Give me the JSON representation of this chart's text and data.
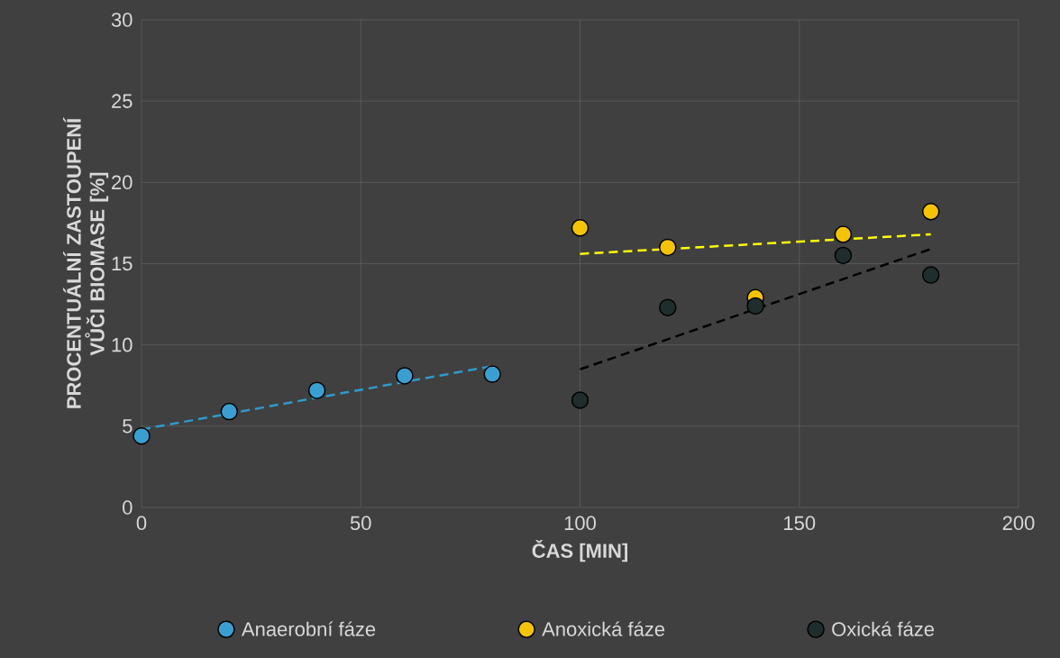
{
  "chart_data": {
    "type": "scatter",
    "xlabel": "ČAS [MIN]",
    "ylabel": "PROCENTUÁLNÍ ZASTOUPENÍ VŮČI BIOMASE [%]",
    "xlim": [
      0,
      200
    ],
    "xticks": [
      0,
      50,
      100,
      150,
      200
    ],
    "ylim": [
      0,
      30
    ],
    "yticks": [
      0,
      5,
      10,
      15,
      20,
      25,
      30
    ],
    "grid": true,
    "legend": "bottom",
    "marker": "circle",
    "series": [
      {
        "name": "Anaerobní fáze",
        "color": "#3a9fd0",
        "x": [
          0,
          20,
          40,
          60,
          80
        ],
        "values": [
          4.4,
          5.9,
          7.2,
          8.1,
          8.2
        ]
      },
      {
        "name": "Anoxická fáze",
        "color": "#f5c400",
        "x": [
          100,
          120,
          140,
          160,
          180
        ],
        "values": [
          17.2,
          16.0,
          12.9,
          16.8,
          18.2
        ]
      },
      {
        "name": "Oxická fáze",
        "color": "#1f2e2c",
        "x": [
          100,
          120,
          140,
          160,
          180
        ],
        "values": [
          6.6,
          12.3,
          12.4,
          15.5,
          14.3
        ]
      },
      {
        "type": "line",
        "color": "#2e9acb",
        "line_style": "dashed",
        "marker": "none",
        "x": [
          0,
          80
        ],
        "values": [
          4.8,
          8.7
        ]
      },
      {
        "type": "line",
        "color": "#ffff00",
        "line_style": "dashed",
        "marker": "none",
        "x": [
          100,
          180
        ],
        "values": [
          15.6,
          16.8
        ]
      },
      {
        "type": "line",
        "color": "#000000",
        "line_style": "dashed",
        "marker": "none",
        "x": [
          100,
          180
        ],
        "values": [
          8.5,
          15.9
        ]
      }
    ]
  }
}
